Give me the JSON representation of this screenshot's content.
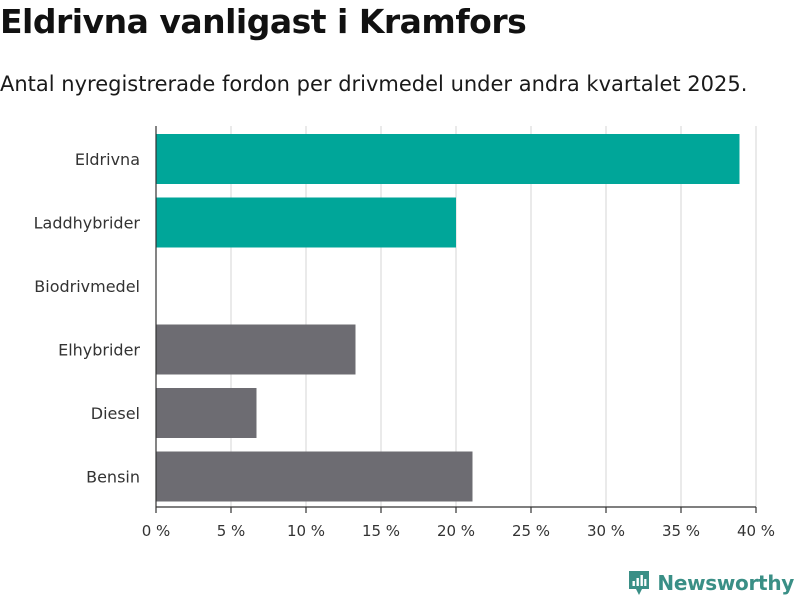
{
  "chart_data": {
    "type": "bar",
    "orientation": "horizontal",
    "title": "Eldrivna vanligast i Kramfors",
    "subtitle": "Antal nyregistrerade fordon per drivmedel under andra kvartalet 2025.",
    "categories": [
      "Eldrivna",
      "Laddhybrider",
      "Biodrivmedel",
      "Elhybrider",
      "Diesel",
      "Bensin"
    ],
    "values": [
      38.9,
      20,
      0,
      13.3,
      6.7,
      21.1
    ],
    "bar_colors": [
      "#00a699",
      "#00a699",
      "#00a699",
      "#6d6c72",
      "#6d6c72",
      "#6d6c72"
    ],
    "xlim": [
      0,
      40
    ],
    "xticks": [
      0,
      5,
      10,
      15,
      20,
      25,
      30,
      35,
      40
    ],
    "xtick_labels": [
      "0 %",
      "5 %",
      "10 %",
      "15 %",
      "20 %",
      "25 %",
      "30 %",
      "35 %",
      "40 %"
    ],
    "xlabel": "",
    "ylabel": "",
    "grid": "vertical",
    "legend": "none"
  },
  "colors": {
    "accent": "#00a699",
    "other": "#6d6c72",
    "gridline": "#dcdcdc",
    "axis": "#333333",
    "brand": "#3a8f86"
  },
  "branding": {
    "name": "Newsworthy",
    "icon": "newsworthy-logo-icon"
  }
}
